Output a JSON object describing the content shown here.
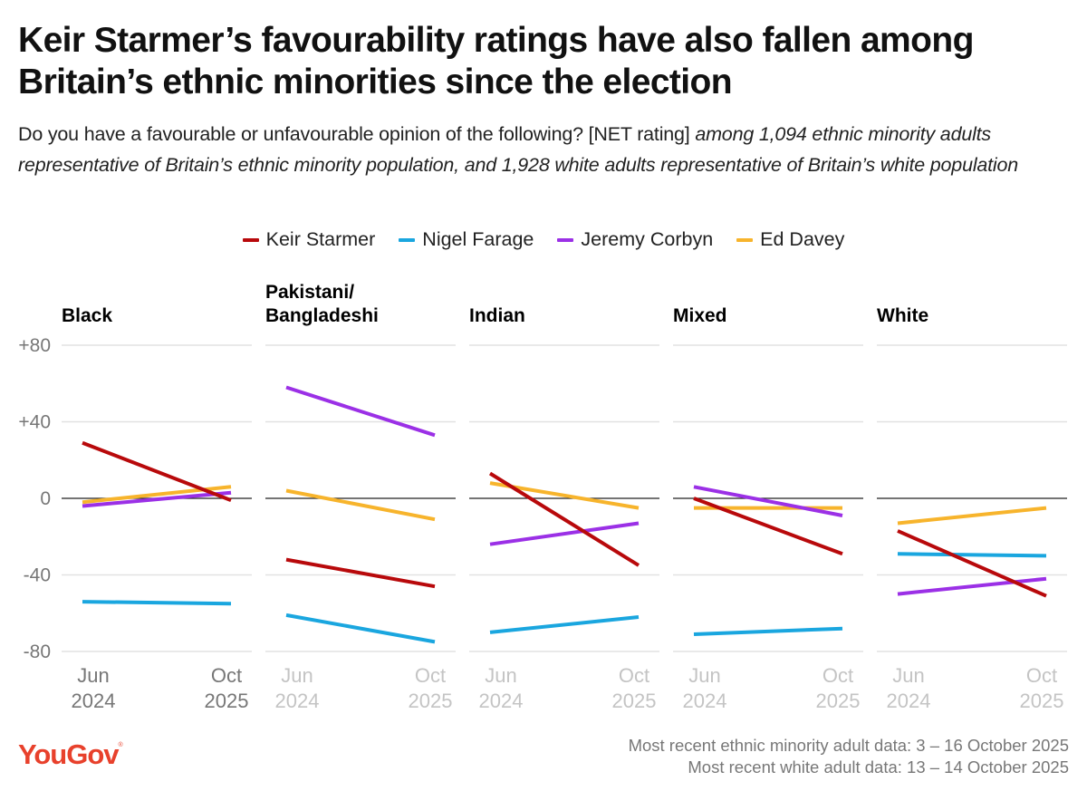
{
  "header": {
    "title": "Keir Starmer’s favourability ratings have also fallen among Britain’s ethnic minorities since the election",
    "subtitle_plain": "Do you have a favourable or unfavourable opinion of the following? [NET rating]",
    "subtitle_italic": "among 1,094 ethnic minority adults representative of Britain’s ethnic minority population, and 1,928 white adults representative of Britain’s white population"
  },
  "footer": {
    "logo": "YouGov",
    "logo_mark": "®",
    "note_1": "Most recent ethnic minority adult data: 3 – 16 October 2025",
    "note_2": "Most recent white adult data: 13 – 14 October 2025"
  },
  "chart_data": {
    "type": "line",
    "title": "Keir Starmer’s favourability ratings have also fallen among Britain’s ethnic minorities since the election",
    "ylabel": "NET rating",
    "ylim": [
      -80,
      80
    ],
    "yticks": [
      80,
      40,
      0,
      -40,
      -80
    ],
    "ytick_labels": [
      "+80",
      "+40",
      "0",
      "-40",
      "-80"
    ],
    "x": [
      "Jun 2024",
      "Oct 2025"
    ],
    "x_labels": [
      [
        "Jun",
        "2024"
      ],
      [
        "Oct",
        "2025"
      ]
    ],
    "grid": true,
    "legend_position": "top-center",
    "series_meta": [
      {
        "name": "Keir Starmer",
        "color": "#b8090b"
      },
      {
        "name": "Nigel Farage",
        "color": "#1aa6df"
      },
      {
        "name": "Jeremy Corbyn",
        "color": "#9b30e6"
      },
      {
        "name": "Ed Davey",
        "color": "#f7b42c"
      }
    ],
    "panels": [
      {
        "title": [
          "Black"
        ],
        "series": [
          {
            "name": "Ed Davey",
            "values": [
              -2,
              6
            ]
          },
          {
            "name": "Jeremy Corbyn",
            "values": [
              -4,
              3
            ]
          },
          {
            "name": "Nigel Farage",
            "values": [
              -54,
              -55
            ]
          },
          {
            "name": "Keir Starmer",
            "values": [
              29,
              -1
            ]
          }
        ]
      },
      {
        "title": [
          "Pakistani/",
          "Bangladeshi"
        ],
        "series": [
          {
            "name": "Ed Davey",
            "values": [
              4,
              -11
            ]
          },
          {
            "name": "Jeremy Corbyn",
            "values": [
              58,
              33
            ]
          },
          {
            "name": "Nigel Farage",
            "values": [
              -61,
              -75
            ]
          },
          {
            "name": "Keir Starmer",
            "values": [
              -32,
              -46
            ]
          }
        ]
      },
      {
        "title": [
          "Indian"
        ],
        "series": [
          {
            "name": "Ed Davey",
            "values": [
              8,
              -5
            ]
          },
          {
            "name": "Jeremy Corbyn",
            "values": [
              -24,
              -13
            ]
          },
          {
            "name": "Nigel Farage",
            "values": [
              -70,
              -62
            ]
          },
          {
            "name": "Keir Starmer",
            "values": [
              13,
              -35
            ]
          }
        ]
      },
      {
        "title": [
          "Mixed"
        ],
        "series": [
          {
            "name": "Ed Davey",
            "values": [
              -5,
              -5
            ]
          },
          {
            "name": "Jeremy Corbyn",
            "values": [
              6,
              -9
            ]
          },
          {
            "name": "Nigel Farage",
            "values": [
              -71,
              -68
            ]
          },
          {
            "name": "Keir Starmer",
            "values": [
              0,
              -29
            ]
          }
        ]
      },
      {
        "title": [
          "White"
        ],
        "series": [
          {
            "name": "Ed Davey",
            "values": [
              -13,
              -5
            ]
          },
          {
            "name": "Jeremy Corbyn",
            "values": [
              -50,
              -42
            ]
          },
          {
            "name": "Nigel Farage",
            "values": [
              -29,
              -30
            ]
          },
          {
            "name": "Keir Starmer",
            "values": [
              -17,
              -51
            ]
          }
        ]
      }
    ]
  }
}
